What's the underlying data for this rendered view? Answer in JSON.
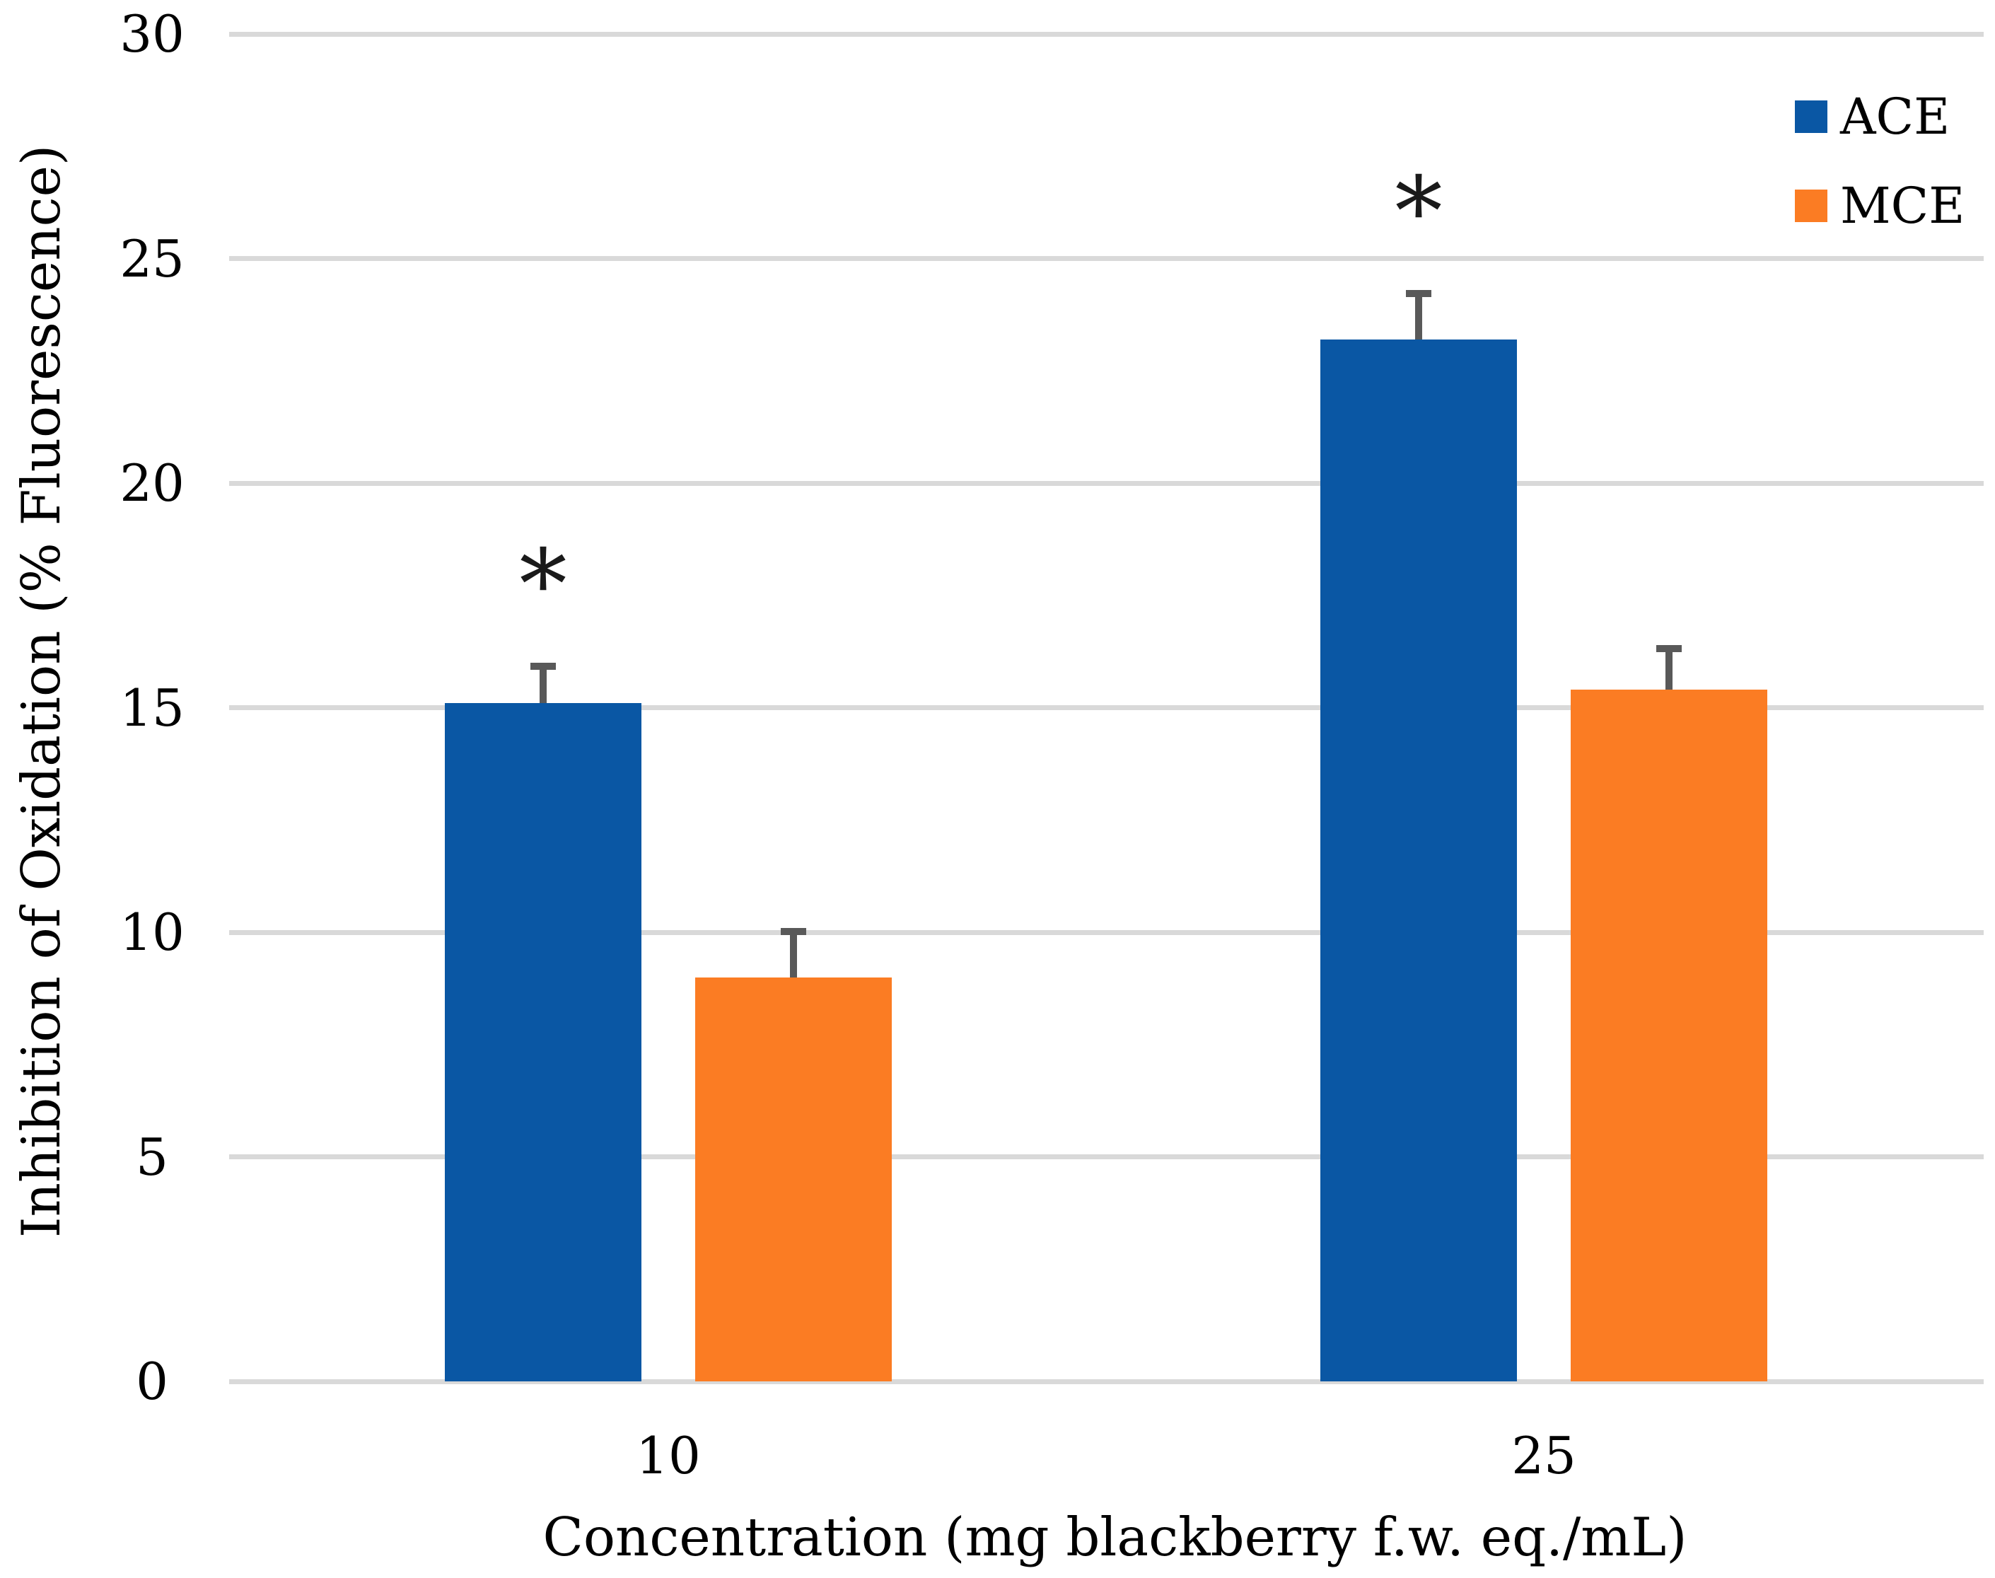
{
  "chart_data": {
    "type": "bar",
    "title": "",
    "categories": [
      "10",
      "25"
    ],
    "series": [
      {
        "name": "ACE",
        "color": "#0a57a4",
        "values": [
          15.1,
          23.2
        ],
        "errors": [
          0.9,
          1.1
        ],
        "significant": [
          true,
          true
        ]
      },
      {
        "name": "MCE",
        "color": "#fb7c23",
        "values": [
          9.0,
          15.4
        ],
        "errors": [
          1.1,
          1.0
        ],
        "significant": [
          false,
          false
        ]
      }
    ],
    "xlabel": "Concentration (mg blackberry f.w. eq./mL)",
    "ylabel": "Inhibition of Oxidation (% Fluorescence)",
    "ylim": [
      0,
      30
    ],
    "yticks": [
      0,
      5,
      10,
      15,
      20,
      25,
      30
    ],
    "grid": true,
    "legend_position": "top-right",
    "significance_marker": "*",
    "colors": {
      "gridline": "#d9d9d9",
      "error_bar": "#595959",
      "text": "#000000",
      "background": "#ffffff"
    }
  }
}
